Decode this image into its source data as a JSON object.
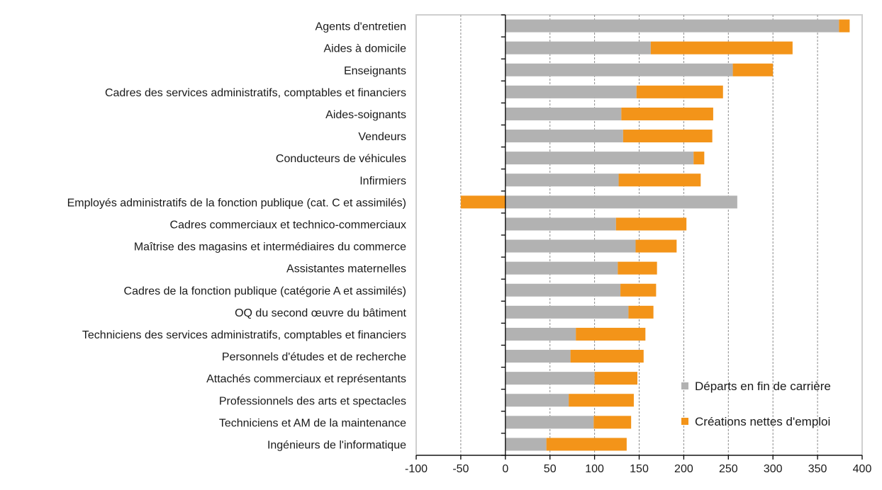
{
  "chart_data": {
    "type": "bar",
    "orientation": "horizontal",
    "stacked": true,
    "title": "",
    "xlabel": "",
    "ylabel": "",
    "xlim": [
      -100,
      400
    ],
    "x_ticks": [
      -100,
      -50,
      0,
      50,
      100,
      150,
      200,
      250,
      300,
      350,
      400
    ],
    "grid": "vertical dashed",
    "legend_position": "bottom-right (inside plot)",
    "categories": [
      "Agents d'entretien",
      "Aides à domicile",
      "Enseignants",
      "Cadres des services administratifs, comptables et financiers",
      "Aides-soignants",
      "Vendeurs",
      "Conducteurs de véhicules",
      "Infirmiers",
      "Employés administratifs de la fonction publique (cat. C et assimilés)",
      "Cadres commerciaux et technico-commerciaux",
      "Maîtrise des magasins et intermédiaires du commerce",
      "Assistantes maternelles",
      "Cadres de la fonction publique (catégorie A et assimilés)",
      "OQ du second œuvre du bâtiment",
      "Techniciens des services administratifs, comptables et financiers",
      "Personnels d'études et de recherche",
      "Attachés commerciaux et représentants",
      "Professionnels des arts et spectacles",
      "Techniciens et AM de la maintenance",
      "Ingénieurs de l'informatique"
    ],
    "series": [
      {
        "name": "Départs en fin de carrière",
        "color": "#b2b2b2",
        "values": [
          374,
          163,
          255,
          147,
          130,
          132,
          211,
          127,
          260,
          124,
          146,
          126,
          129,
          138,
          79,
          73,
          100,
          71,
          99,
          46
        ]
      },
      {
        "name": "Créations nettes d'emploi",
        "color": "#f39419",
        "values": [
          12,
          159,
          45,
          97,
          103,
          100,
          12,
          92,
          -50,
          79,
          46,
          44,
          40,
          28,
          78,
          82,
          48,
          73,
          42,
          90
        ]
      }
    ]
  }
}
